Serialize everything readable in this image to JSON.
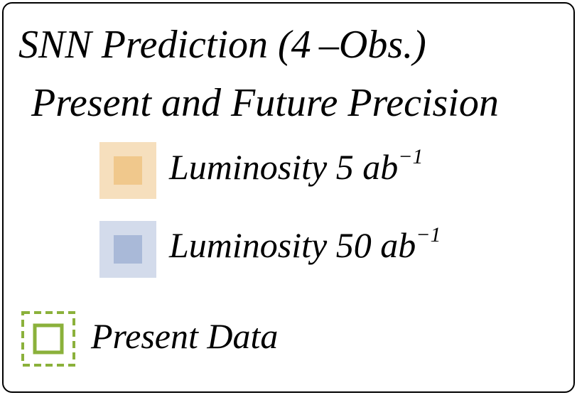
{
  "legend": {
    "title": "SNN Prediction (4 –Obs.)",
    "subtitle": "Present and Future Precision",
    "items": [
      {
        "label": "Luminosity 5 ab",
        "superscript": "−1",
        "outer_color": "#f6dfbd",
        "inner_color": "#f0c88c"
      },
      {
        "label": "Luminosity 50 ab",
        "superscript": "−1",
        "outer_color": "#d3dbeb",
        "inner_color": "#a9b9d8"
      }
    ],
    "data_item": {
      "label": "Present Data",
      "color": "#8bb13b"
    }
  }
}
